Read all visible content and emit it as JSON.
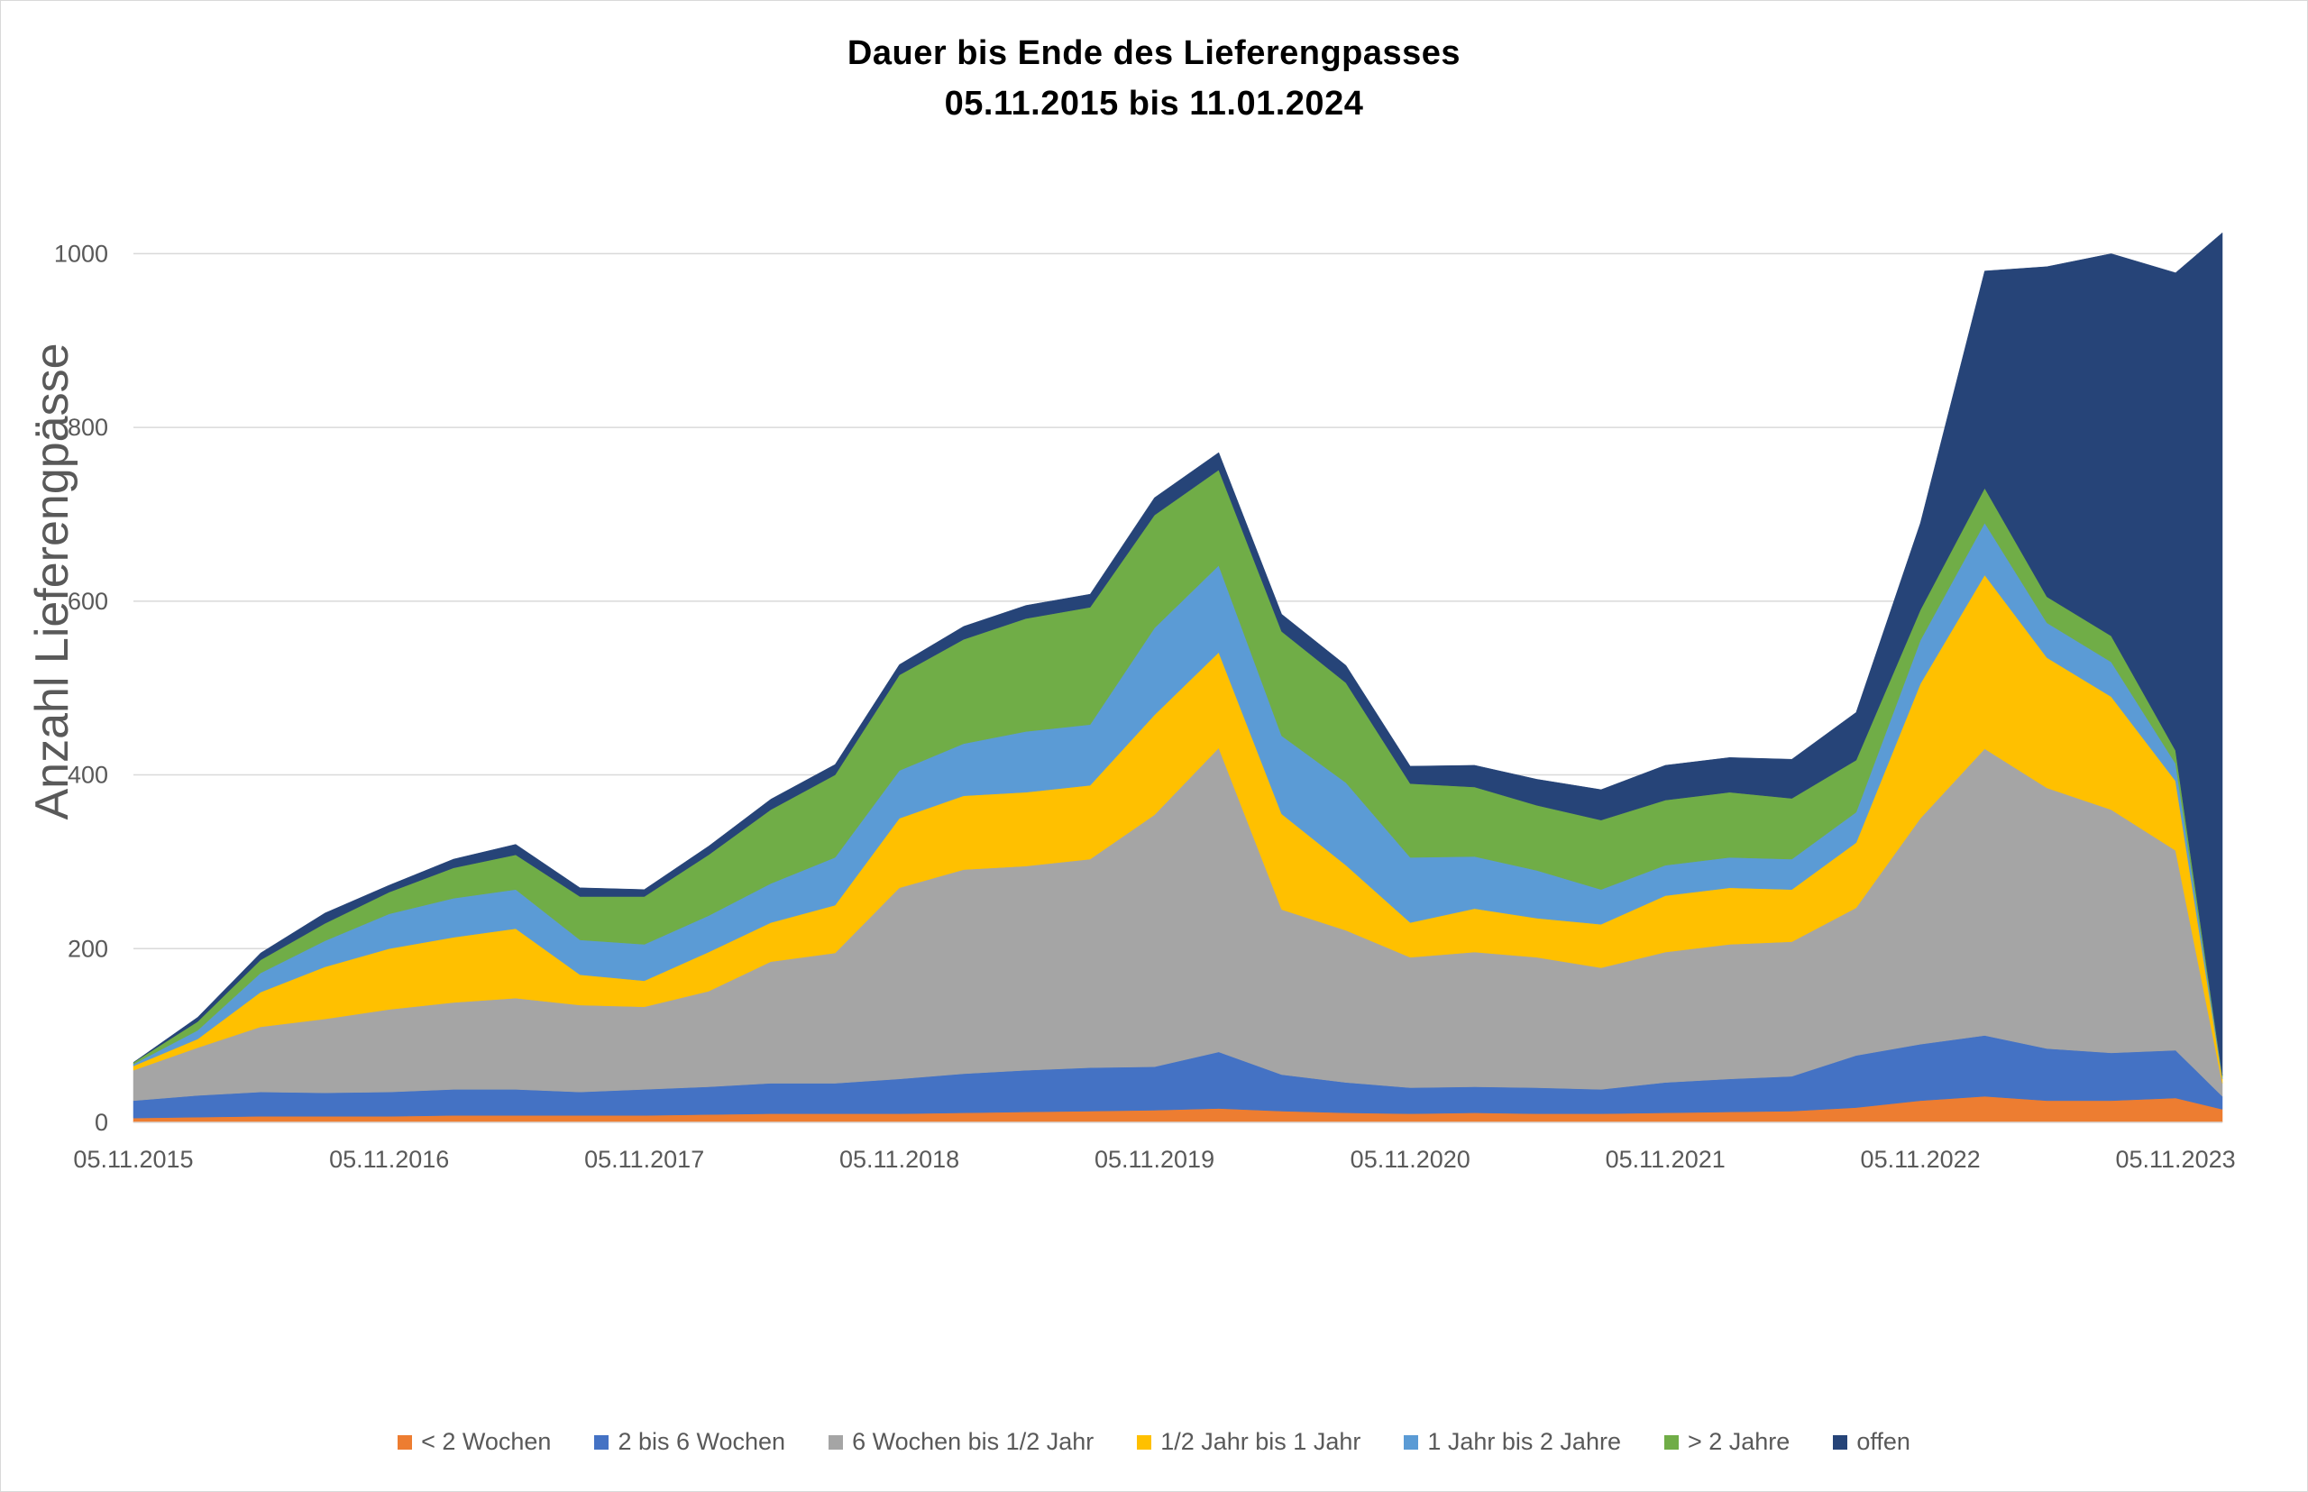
{
  "chart_data": {
    "type": "area",
    "stacked": true,
    "title": "Dauer bis Ende des Lieferengpasses",
    "subtitle": "05.11.2015 bis  11.01.2024",
    "xlabel": "",
    "ylabel": "Anzahl Lieferengpässe",
    "ylim": [
      0,
      1100
    ],
    "yticks": [
      0,
      200,
      400,
      600,
      800,
      1000
    ],
    "xticks": [
      "05.11.2015",
      "05.11.2016",
      "05.11.2017",
      "05.11.2018",
      "05.11.2019",
      "05.11.2020",
      "05.11.2021",
      "05.11.2022",
      "05.11.2023"
    ],
    "x": [
      "05.11.2015",
      "05.02.2016",
      "05.05.2016",
      "05.08.2016",
      "05.11.2016",
      "05.02.2017",
      "05.05.2017",
      "05.08.2017",
      "05.11.2017",
      "05.02.2018",
      "05.05.2018",
      "05.08.2018",
      "05.11.2018",
      "05.02.2019",
      "05.05.2019",
      "05.08.2019",
      "05.11.2019",
      "05.02.2020",
      "05.05.2020",
      "05.08.2020",
      "05.11.2020",
      "05.02.2021",
      "05.05.2021",
      "05.08.2021",
      "05.11.2021",
      "05.02.2022",
      "05.05.2022",
      "05.08.2022",
      "05.11.2022",
      "05.02.2023",
      "05.05.2023",
      "05.08.2023",
      "05.11.2023",
      "11.01.2024"
    ],
    "grid": true,
    "legend_position": "bottom",
    "series": [
      {
        "name": "< 2 Wochen",
        "color": "#ED7D31",
        "values": [
          5,
          6,
          7,
          7,
          7,
          8,
          8,
          8,
          8,
          9,
          10,
          10,
          10,
          11,
          12,
          13,
          14,
          16,
          13,
          11,
          10,
          11,
          10,
          10,
          11,
          12,
          13,
          17,
          25,
          30,
          25,
          25,
          28,
          15
        ]
      },
      {
        "name": "2 bis 6 Wochen",
        "color": "#4472C4",
        "values": [
          20,
          25,
          28,
          27,
          28,
          30,
          30,
          27,
          30,
          32,
          35,
          35,
          40,
          45,
          48,
          50,
          50,
          65,
          42,
          35,
          30,
          30,
          30,
          28,
          35,
          38,
          40,
          60,
          65,
          70,
          60,
          55,
          55,
          15
        ]
      },
      {
        "name": "6 Wochen bis 1/2 Jahr",
        "color": "#A5A5A5",
        "values": [
          35,
          55,
          75,
          85,
          95,
          100,
          105,
          100,
          95,
          110,
          140,
          150,
          220,
          235,
          235,
          240,
          290,
          350,
          190,
          175,
          150,
          155,
          150,
          140,
          150,
          155,
          155,
          170,
          260,
          330,
          300,
          280,
          230,
          15
        ]
      },
      {
        "name": "1/2 Jahr bis 1 Jahr",
        "color": "#FFC000",
        "values": [
          5,
          10,
          40,
          60,
          70,
          75,
          80,
          35,
          30,
          45,
          45,
          55,
          80,
          85,
          85,
          85,
          115,
          110,
          110,
          75,
          40,
          50,
          45,
          50,
          65,
          65,
          60,
          75,
          155,
          200,
          150,
          130,
          80,
          5
        ]
      },
      {
        "name": "1 Jahr bis 2 Jahre",
        "color": "#5B9BD5",
        "values": [
          2,
          10,
          22,
          30,
          40,
          45,
          45,
          40,
          42,
          42,
          45,
          55,
          55,
          60,
          70,
          70,
          100,
          100,
          90,
          95,
          75,
          60,
          55,
          40,
          35,
          35,
          35,
          35,
          50,
          60,
          40,
          40,
          20,
          2
        ]
      },
      {
        "name": "> 2 Jahre",
        "color": "#70AD47",
        "values": [
          2,
          10,
          15,
          20,
          25,
          35,
          40,
          50,
          55,
          70,
          85,
          95,
          110,
          120,
          130,
          135,
          130,
          110,
          120,
          115,
          85,
          80,
          75,
          80,
          75,
          75,
          70,
          60,
          35,
          40,
          30,
          30,
          15,
          2
        ]
      },
      {
        "name": "offen",
        "color": "#264478",
        "values": [
          0,
          5,
          8,
          12,
          8,
          10,
          12,
          10,
          8,
          10,
          12,
          12,
          12,
          15,
          15,
          15,
          20,
          20,
          20,
          20,
          20,
          25,
          30,
          35,
          40,
          40,
          45,
          55,
          100,
          250,
          380,
          440,
          550,
          970
        ]
      }
    ]
  }
}
